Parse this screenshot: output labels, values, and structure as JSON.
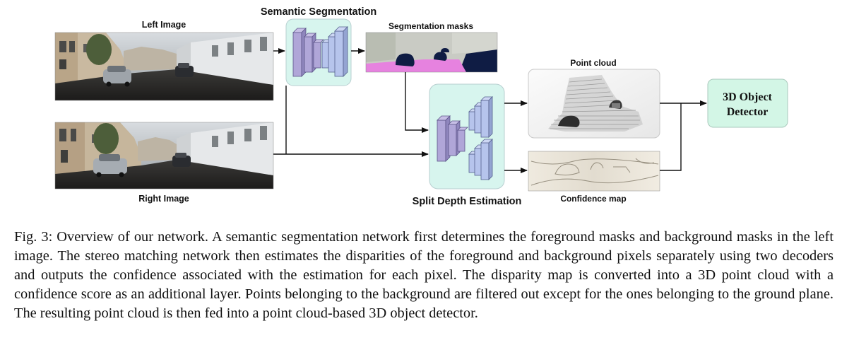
{
  "figure": {
    "left_image_label": "Left Image",
    "right_image_label": "Right Image",
    "semantic_segmentation_label": "Semantic Segmentation",
    "segmentation_masks_label": "Segmentation masks",
    "split_depth_label": "Split Depth Estimation",
    "point_cloud_label": "Point cloud",
    "confidence_map_label": "Confidence map",
    "detector_line1": "3D Object",
    "detector_line2": "Detector"
  },
  "colors": {
    "module_fill": "#d7f5ee",
    "layer_purple": "#b0a6d8",
    "layer_blue": "#b6c4ec",
    "detector_fill": "#d3f6e6",
    "seg_gray": "#c9cbc4",
    "seg_pink": "#e682df",
    "seg_navy": "#0f1c44"
  },
  "caption": {
    "text": "Fig. 3: Overview of our network. A semantic segmentation network first determines the foreground masks and background masks in the left image. The stereo matching network then estimates the disparities of the foreground and background pixels separately using two decoders and outputs the confidence associated with the estimation for each pixel. The disparity map is converted into a 3D point cloud with a confidence score as an additional layer. Points belonging to the background are filtered out except for the ones belonging to the ground plane. The resulting point cloud is then fed into a point cloud-based 3D object detector."
  }
}
